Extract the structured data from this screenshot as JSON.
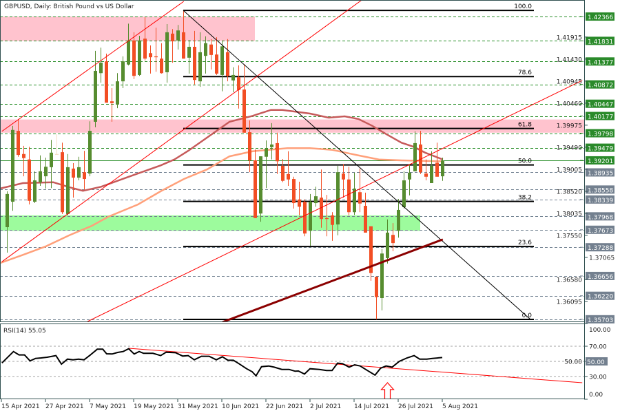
{
  "title": "GBPUSD, Daily:  British Pound vs US Dollar",
  "chart_data": [
    {
      "type": "candlestick",
      "symbol": "GBPUSD",
      "timeframe": "Daily",
      "colors": {
        "bull": "#568c2f",
        "bear": "#f24e24",
        "doji": "#f5dfc4",
        "level_green": "#228b22",
        "level_gray": "#708090",
        "label_green": "#2a8a2a",
        "label_gray": "#73808f"
      },
      "candles": [
        [
          1.3773,
          1.3852,
          1.3717,
          1.3846
        ],
        [
          1.3829,
          1.3996,
          1.3809,
          1.3987
        ],
        [
          1.3985,
          1.4011,
          1.3928,
          1.3932
        ],
        [
          1.3934,
          1.3952,
          1.3885,
          1.3925
        ],
        [
          1.3922,
          1.395,
          1.3823,
          1.3831
        ],
        [
          1.3829,
          1.3896,
          1.3826,
          1.3876
        ],
        [
          1.3872,
          1.3931,
          1.3864,
          1.3896
        ],
        [
          1.3885,
          1.3926,
          1.3858,
          1.3906
        ],
        [
          1.3905,
          1.3965,
          1.3859,
          1.3937
        ],
        [
          1.3934,
          1.3978,
          1.3933,
          1.3934
        ],
        [
          1.3938,
          1.3959,
          1.3802,
          1.3806
        ],
        [
          1.3802,
          1.3934,
          1.3799,
          1.3905
        ],
        [
          1.3902,
          1.3914,
          1.3838,
          1.3882
        ],
        [
          1.3882,
          1.3928,
          1.3876,
          1.3905
        ],
        [
          1.3894,
          1.3941,
          1.3856,
          1.3879
        ],
        [
          1.3891,
          1.4006,
          1.3885,
          1.3985
        ],
        [
          1.4005,
          1.4161,
          1.3993,
          1.4117
        ],
        [
          1.4112,
          1.4168,
          1.4091,
          1.4135
        ],
        [
          1.4138,
          1.4155,
          1.4047,
          1.4047
        ],
        [
          1.405,
          1.4079,
          1.4005,
          1.4046
        ],
        [
          1.4043,
          1.4112,
          1.4035,
          1.4094
        ],
        [
          1.4094,
          1.4149,
          1.4079,
          1.4138
        ],
        [
          1.4131,
          1.4221,
          1.4129,
          1.4184
        ],
        [
          1.4184,
          1.4202,
          1.4099,
          1.4106
        ],
        [
          1.4108,
          1.4194,
          1.4106,
          1.4184
        ],
        [
          1.4188,
          1.4235,
          1.414,
          1.4144
        ],
        [
          1.4156,
          1.4173,
          1.4111,
          1.4147
        ],
        [
          1.4149,
          1.4212,
          1.4115,
          1.4147
        ],
        [
          1.4144,
          1.4178,
          1.4111,
          1.4112
        ],
        [
          1.4114,
          1.422,
          1.4091,
          1.4202
        ],
        [
          1.4199,
          1.4209,
          1.4135,
          1.4182
        ],
        [
          1.4184,
          1.4218,
          1.4164,
          1.4206
        ],
        [
          1.4202,
          1.425,
          1.4144,
          1.4144
        ],
        [
          1.4146,
          1.4185,
          1.4111,
          1.417
        ],
        [
          1.417,
          1.4205,
          1.4087,
          1.4097
        ],
        [
          1.4094,
          1.4202,
          1.4082,
          1.4158
        ],
        [
          1.415,
          1.4193,
          1.4111,
          1.4178
        ],
        [
          1.4175,
          1.4187,
          1.412,
          1.4152
        ],
        [
          1.4153,
          1.4191,
          1.4108,
          1.4111
        ],
        [
          1.4108,
          1.4184,
          1.4072,
          1.4171
        ],
        [
          1.4158,
          1.4187,
          1.4094,
          1.4106
        ],
        [
          1.4096,
          1.4125,
          1.407,
          1.4108
        ],
        [
          1.4103,
          1.4129,
          1.4034,
          1.4075
        ],
        [
          1.4076,
          1.4132,
          1.3981,
          1.3981
        ],
        [
          1.3982,
          1.4008,
          1.3894,
          1.392
        ],
        [
          1.392,
          1.3944,
          1.3793,
          1.3793
        ],
        [
          1.3803,
          1.3929,
          1.3785,
          1.3929
        ],
        [
          1.3928,
          1.3964,
          1.3859,
          1.3946
        ],
        [
          1.3949,
          1.4002,
          1.3922,
          1.3955
        ],
        [
          1.3958,
          1.3981,
          1.389,
          1.3918
        ],
        [
          1.3908,
          1.3923,
          1.3872,
          1.3875
        ],
        [
          1.389,
          1.394,
          1.3864,
          1.3878
        ],
        [
          1.3879,
          1.3884,
          1.3814,
          1.3826
        ],
        [
          1.3834,
          1.3873,
          1.3799,
          1.3818
        ],
        [
          1.3829,
          1.3834,
          1.3753,
          1.3759
        ],
        [
          1.3765,
          1.3846,
          1.3732,
          1.3829
        ],
        [
          1.3826,
          1.3862,
          1.3818,
          1.3841
        ],
        [
          1.3838,
          1.39,
          1.3772,
          1.3791
        ],
        [
          1.3793,
          1.3844,
          1.3753,
          1.3791
        ],
        [
          1.3799,
          1.3806,
          1.3743,
          1.3778
        ],
        [
          1.3779,
          1.3908,
          1.3755,
          1.3894
        ],
        [
          1.3891,
          1.3912,
          1.3838,
          1.3878
        ],
        [
          1.3878,
          1.3906,
          1.3799,
          1.3806
        ],
        [
          1.3806,
          1.3893,
          1.38,
          1.3858
        ],
        [
          1.385,
          1.3902,
          1.3806,
          1.3825
        ],
        [
          1.382,
          1.3849,
          1.3761,
          1.3761
        ],
        [
          1.3775,
          1.3775,
          1.3655,
          1.3672
        ],
        [
          1.3664,
          1.3664,
          1.357,
          1.3619
        ],
        [
          1.3617,
          1.3725,
          1.359,
          1.3715
        ],
        [
          1.3705,
          1.379,
          1.3693,
          1.3761
        ],
        [
          1.3756,
          1.3782,
          1.372,
          1.3738
        ],
        [
          1.3765,
          1.3835,
          1.375,
          1.3811
        ],
        [
          1.3817,
          1.3896,
          1.3814,
          1.3876
        ],
        [
          1.3878,
          1.3912,
          1.3843,
          1.3893
        ],
        [
          1.3896,
          1.3984,
          1.3896,
          1.3958
        ],
        [
          1.3955,
          1.3985,
          1.389,
          1.3894
        ],
        [
          1.3891,
          1.3922,
          1.3876,
          1.3884
        ],
        [
          1.387,
          1.394,
          1.387,
          1.3908
        ],
        [
          1.3915,
          1.3959,
          1.3884,
          1.3884
        ],
        [
          1.3885,
          1.3926,
          1.3875,
          1.392
        ]
      ],
      "moving_averages": [
        {
          "color": "#c65a5a",
          "points": [
            [
              -1.25,
              1.3858
            ],
            [
              2.9,
              1.387
            ],
            [
              8.4,
              1.3872
            ],
            [
              11.3,
              1.3861
            ],
            [
              13.8,
              1.3853
            ],
            [
              17.1,
              1.3862
            ],
            [
              22.1,
              1.3884
            ],
            [
              27.9,
              1.3909
            ],
            [
              30.4,
              1.3922
            ],
            [
              32.9,
              1.3941
            ],
            [
              36.3,
              1.397
            ],
            [
              40.4,
              1.4005
            ],
            [
              44.6,
              1.4018
            ],
            [
              47.9,
              1.4031
            ],
            [
              50,
              1.4031
            ],
            [
              55,
              1.4023
            ],
            [
              58.4,
              1.4014
            ],
            [
              61.3,
              1.4017
            ],
            [
              63.8,
              1.4011
            ],
            [
              66.3,
              1.3996
            ],
            [
              68.8,
              1.3978
            ],
            [
              71.6,
              1.3959
            ],
            [
              73.8,
              1.395
            ],
            [
              75.9,
              1.3937
            ],
            [
              79.1,
              1.3922
            ]
          ]
        },
        {
          "color": "#ffa07a",
          "points": [
            [
              -1.25,
              1.3694
            ],
            [
              2.9,
              1.3712
            ],
            [
              7.1,
              1.3731
            ],
            [
              11.3,
              1.3755
            ],
            [
              15.4,
              1.3776
            ],
            [
              18.4,
              1.3796
            ],
            [
              23.8,
              1.3823
            ],
            [
              27.9,
              1.3852
            ],
            [
              32.1,
              1.3879
            ],
            [
              36.3,
              1.39
            ],
            [
              40.4,
              1.3929
            ],
            [
              44.6,
              1.394
            ],
            [
              50.9,
              1.3947
            ],
            [
              55,
              1.3947
            ],
            [
              59.1,
              1.3943
            ],
            [
              63.4,
              1.3932
            ],
            [
              67.5,
              1.3922
            ],
            [
              71.6,
              1.392
            ],
            [
              79.1,
              1.3918
            ]
          ]
        }
      ],
      "trendlines": [
        {
          "color": "#ff0000",
          "width": 1,
          "from": [
            -0.9,
            1.3697
          ],
          "to": [
            64.4,
            1.4273
          ]
        },
        {
          "color": "#ff0000",
          "width": 1,
          "from": [
            -0.9,
            1.3984
          ],
          "to": [
            32.1,
            1.427
          ]
        },
        {
          "color": "#ff0000",
          "width": 1,
          "from": [
            14.4,
            1.3564
          ],
          "to": [
            104.4,
            1.4096
          ]
        },
        {
          "color": "#000000",
          "width": 1,
          "from": [
            32,
            1.425
          ],
          "to": [
            95,
            1.357
          ]
        },
        {
          "color": "#8b0000",
          "width": 3,
          "from": [
            39.1,
            1.3564
          ],
          "to": [
            79.1,
            1.3746
          ]
        }
      ],
      "zones": [
        {
          "from": 1.42366,
          "to": 1.41831,
          "end_bar": 45,
          "color": "#ffc0cb"
        },
        {
          "from": 1.401,
          "to": 1.3981,
          "end_bar": 106,
          "color": "#ffc0cb"
        },
        {
          "from": 1.3799,
          "to": 1.3765,
          "end_bar": 75,
          "color": "#98fb98"
        }
      ],
      "fibonacci": {
        "high": 1.425,
        "low": 1.357,
        "start_bar": 32,
        "end_bar": 95,
        "levels": [
          {
            "ratio": 1.0,
            "label": "100.0"
          },
          {
            "ratio": 0.786,
            "label": "78.6"
          },
          {
            "ratio": 0.618,
            "label": "61.8"
          },
          {
            "ratio": 0.5,
            "label": "50.0"
          },
          {
            "ratio": 0.382,
            "label": "38.2"
          },
          {
            "ratio": 0.236,
            "label": "23.6"
          },
          {
            "ratio": 0.0,
            "label": "0.0"
          }
        ]
      },
      "axis_ticks": [
        "1.41915",
        "1.41430",
        "1.40945",
        "1.40460",
        "1.39975",
        "1.39490",
        "1.39005",
        "1.38520",
        "1.38035",
        "1.37550",
        "1.37065",
        "1.36580",
        "1.36095"
      ],
      "price_levels": [
        {
          "label": "1.42366",
          "style": "green"
        },
        {
          "label": "1.41831",
          "style": "green"
        },
        {
          "label": "1.41377",
          "style": "green"
        },
        {
          "label": "1.40872",
          "style": "green"
        },
        {
          "label": "1.40447",
          "style": "green"
        },
        {
          "label": "1.40177",
          "style": "green"
        },
        {
          "label": "1.39798",
          "style": "green"
        },
        {
          "label": "1.39479",
          "style": "green"
        },
        {
          "label": "1.39201",
          "style": "green",
          "current": true
        },
        {
          "label": "1.38935",
          "style": "gray"
        },
        {
          "label": "1.38558",
          "style": "gray"
        },
        {
          "label": "1.38339",
          "style": "gray"
        },
        {
          "label": "1.37968",
          "style": "gray"
        },
        {
          "label": "1.37673",
          "style": "gray"
        },
        {
          "label": "1.37288",
          "style": "gray"
        },
        {
          "label": "1.36656",
          "style": "gray"
        },
        {
          "label": "1.36220",
          "style": "gray"
        },
        {
          "label": "1.35703",
          "style": "gray"
        }
      ],
      "x_labels": [
        "15 Apr 2021",
        "27 Apr 2021",
        "7 May 2021",
        "19 May 2021",
        "31 May 2021",
        "10 Jun 2021",
        "22 Jun 2021",
        "2 Jul 2021",
        "14 Jul 2021",
        "26 Jul 2021",
        "5 Aug 2021"
      ]
    },
    {
      "type": "line",
      "title": "RSI(14) 55.05",
      "ylim": [
        0,
        100
      ],
      "levels": [
        "100.00",
        "70.00",
        "50.00",
        "30.00",
        "0.00"
      ],
      "level_values": [
        100,
        70,
        50,
        30,
        0
      ],
      "dashed_levels": [
        70,
        50,
        30
      ],
      "current_label": "50.00",
      "series": [
        [
          -0.9,
          47.9
        ],
        [
          1.2,
          63.0
        ],
        [
          2.2,
          58.5
        ],
        [
          3.2,
          58.5
        ],
        [
          4.2,
          50.6
        ],
        [
          5.2,
          53.9
        ],
        [
          6.2,
          54.5
        ],
        [
          7.3,
          55.5
        ],
        [
          8.9,
          57.6
        ],
        [
          9.9,
          46.4
        ],
        [
          11,
          53.0
        ],
        [
          12,
          52.1
        ],
        [
          13,
          53.0
        ],
        [
          14,
          52.1
        ],
        [
          15,
          57.6
        ],
        [
          16.4,
          66.1
        ],
        [
          17.4,
          66.1
        ],
        [
          18.1,
          60.0
        ],
        [
          19.1,
          59.7
        ],
        [
          20.1,
          61.8
        ],
        [
          21.1,
          63.0
        ],
        [
          22.1,
          66.7
        ],
        [
          23.1,
          59.7
        ],
        [
          24,
          63.0
        ],
        [
          24.8,
          60.6
        ],
        [
          26.5,
          60.6
        ],
        [
          27.9,
          57.6
        ],
        [
          28.9,
          62.1
        ],
        [
          30.6,
          61.5
        ],
        [
          31.9,
          57.0
        ],
        [
          32.9,
          57.6
        ],
        [
          34,
          52.1
        ],
        [
          35.3,
          56.7
        ],
        [
          36.7,
          56.7
        ],
        [
          38,
          52.1
        ],
        [
          39.1,
          56.1
        ],
        [
          40.1,
          51.5
        ],
        [
          41.1,
          51.5
        ],
        [
          42.1,
          47.0
        ],
        [
          43.5,
          40.3
        ],
        [
          44.5,
          36.4
        ],
        [
          45.2,
          30.9
        ],
        [
          46.2,
          43.0
        ],
        [
          47.5,
          43.9
        ],
        [
          48.5,
          42.4
        ],
        [
          49.9,
          39.4
        ],
        [
          51.2,
          39.4
        ],
        [
          52.3,
          37.0
        ],
        [
          52.9,
          37.3
        ],
        [
          54,
          33.3
        ],
        [
          55,
          40.3
        ],
        [
          56.7,
          39.4
        ],
        [
          58,
          37.9
        ],
        [
          59,
          37.9
        ],
        [
          60,
          47.6
        ],
        [
          60.9,
          47.0
        ],
        [
          62.1,
          42.4
        ],
        [
          63.1,
          45.5
        ],
        [
          64.1,
          43.9
        ],
        [
          65.1,
          39.4
        ],
        [
          66.8,
          31.8
        ],
        [
          67.8,
          40.9
        ],
        [
          68.8,
          43.9
        ],
        [
          69.9,
          42.4
        ],
        [
          71.2,
          50.0
        ],
        [
          72.6,
          54.5
        ],
        [
          73.9,
          57.6
        ],
        [
          74.9,
          53.0
        ],
        [
          76.2,
          53.0
        ],
        [
          77.2,
          53.9
        ],
        [
          79,
          55.05
        ]
      ],
      "trendline": {
        "color": "#ff0000",
        "from": [
          22.1,
          67.3
        ],
        "to": [
          104.4,
          21.8
        ]
      },
      "arrow": {
        "bar": 69,
        "color": "#ff0000",
        "direction": "up"
      }
    }
  ]
}
